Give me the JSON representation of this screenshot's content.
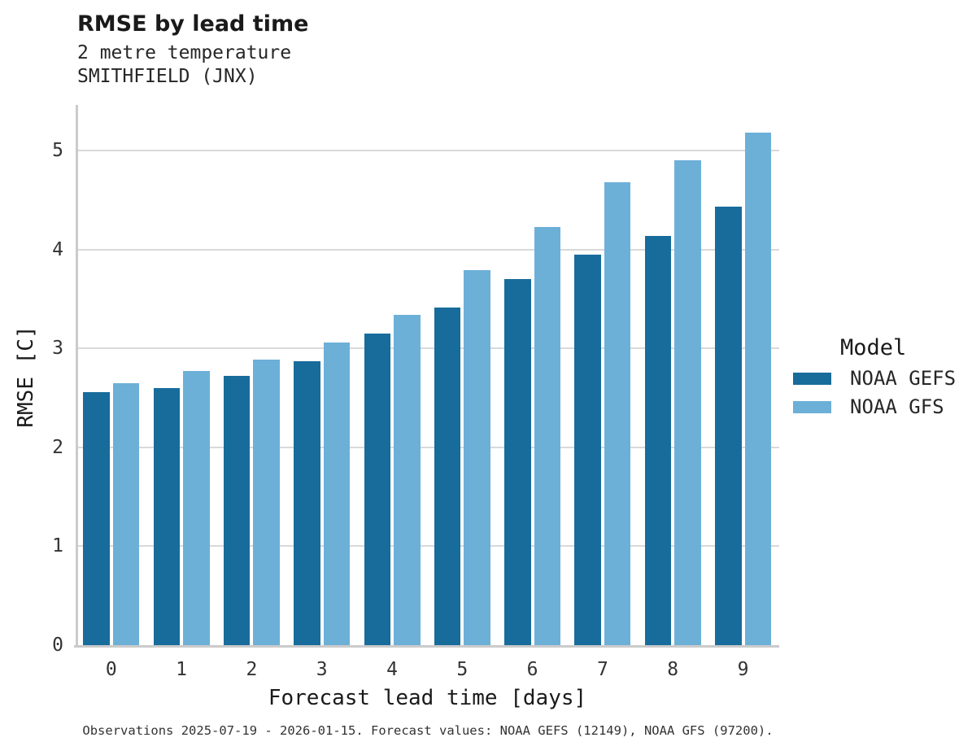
{
  "header": {
    "title": "RMSE by lead time",
    "subtitle1": "2 metre temperature",
    "subtitle2": "SMITHFIELD (JNX)"
  },
  "chart_data": {
    "type": "bar",
    "title": "RMSE by lead time",
    "subtitle": "2 metre temperature / SMITHFIELD (JNX)",
    "categories": [
      "0",
      "1",
      "2",
      "3",
      "4",
      "5",
      "6",
      "7",
      "8",
      "9"
    ],
    "series": [
      {
        "name": "NOAA GEFS",
        "color": "#176c9b",
        "values": [
          2.56,
          2.6,
          2.72,
          2.87,
          3.15,
          3.41,
          3.7,
          3.95,
          4.14,
          4.43
        ]
      },
      {
        "name": "NOAA GFS",
        "color": "#6cb0d8",
        "values": [
          2.65,
          2.77,
          2.89,
          3.06,
          3.34,
          3.79,
          4.23,
          4.68,
          4.9,
          5.18
        ]
      }
    ],
    "xlabel": "Forecast lead time [days]",
    "ylabel": "RMSE [C]",
    "ylim": [
      0,
      5.45
    ],
    "yticks": [
      0,
      1,
      2,
      3,
      4,
      5
    ],
    "grid": true,
    "legend_title": "Model",
    "legend_position": "right"
  },
  "legend": {
    "title": "Model",
    "items": [
      {
        "label": "NOAA GEFS",
        "color": "#176c9b"
      },
      {
        "label": "NOAA GFS",
        "color": "#6cb0d8"
      }
    ]
  },
  "caption": "Observations 2025-07-19 - 2026-01-15. Forecast values: NOAA GEFS (12149), NOAA GFS (97200).",
  "colors": {
    "grid": "#d9d9d9",
    "axis": "#cbcbcb",
    "background": "#ffffff"
  }
}
